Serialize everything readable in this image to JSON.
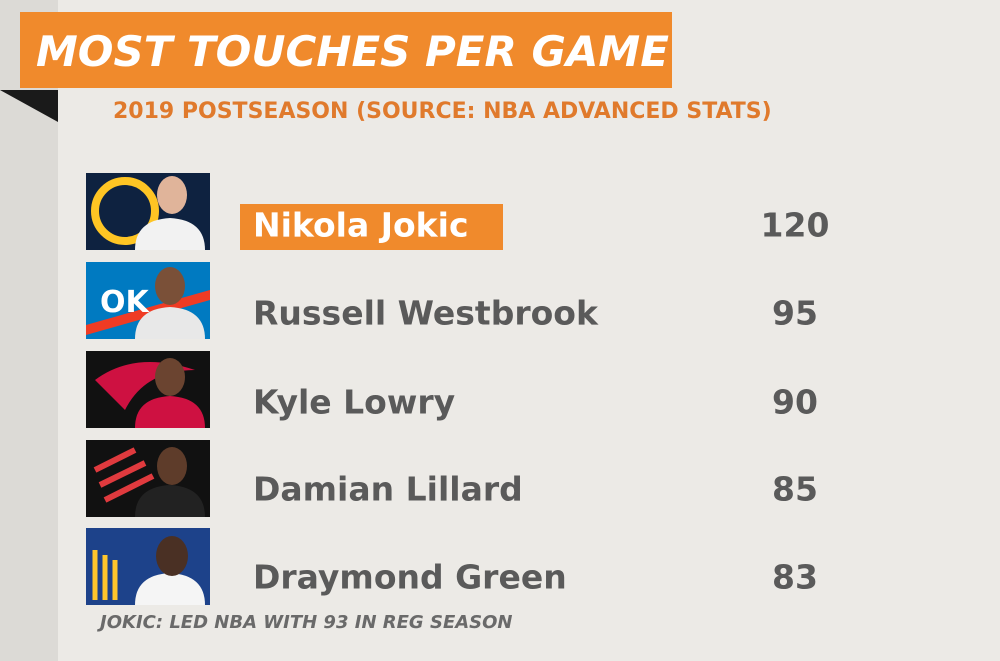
{
  "header": {
    "title": "MOST TOUCHES PER GAME",
    "subtitle": "2019 POSTSEASON (SOURCE: NBA ADVANCED STATS)"
  },
  "table": {
    "rows": [
      [
        "Nikola Jokic",
        120
      ],
      [
        "Russell Westbrook",
        95
      ],
      [
        "Kyle Lowry",
        90
      ],
      [
        "Damian Lillard",
        85
      ],
      [
        "Draymond Green",
        83
      ]
    ]
  },
  "footnote": "JOKIC: LED NBA WITH 93 IN REG SEASON"
}
